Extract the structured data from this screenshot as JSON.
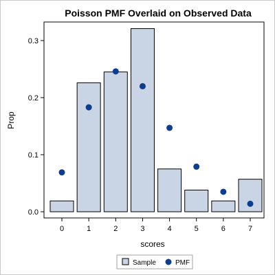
{
  "chart_data": {
    "type": "bar",
    "title": "Poisson PMF Overlaid on Observed Data",
    "xlabel": "scores",
    "ylabel": "Prop",
    "categories": [
      "0",
      "1",
      "2",
      "3",
      "4",
      "5",
      "6",
      "7"
    ],
    "series": [
      {
        "name": "Sample",
        "kind": "bar",
        "values": [
          0.019,
          0.226,
          0.245,
          0.321,
          0.075,
          0.038,
          0.019,
          0.057
        ],
        "color": "#c9d4e5"
      },
      {
        "name": "PMF",
        "kind": "scatter",
        "values": [
          0.069,
          0.183,
          0.246,
          0.22,
          0.147,
          0.079,
          0.035,
          0.014
        ],
        "color": "#0d3d91"
      }
    ],
    "ylim": [
      0,
      0.33
    ],
    "yticks": [
      "0.0",
      "0.1",
      "0.2",
      "0.3"
    ],
    "ytick_values": [
      0,
      0.1,
      0.2,
      0.3
    ],
    "grid": false,
    "legend_position": "bottom"
  }
}
